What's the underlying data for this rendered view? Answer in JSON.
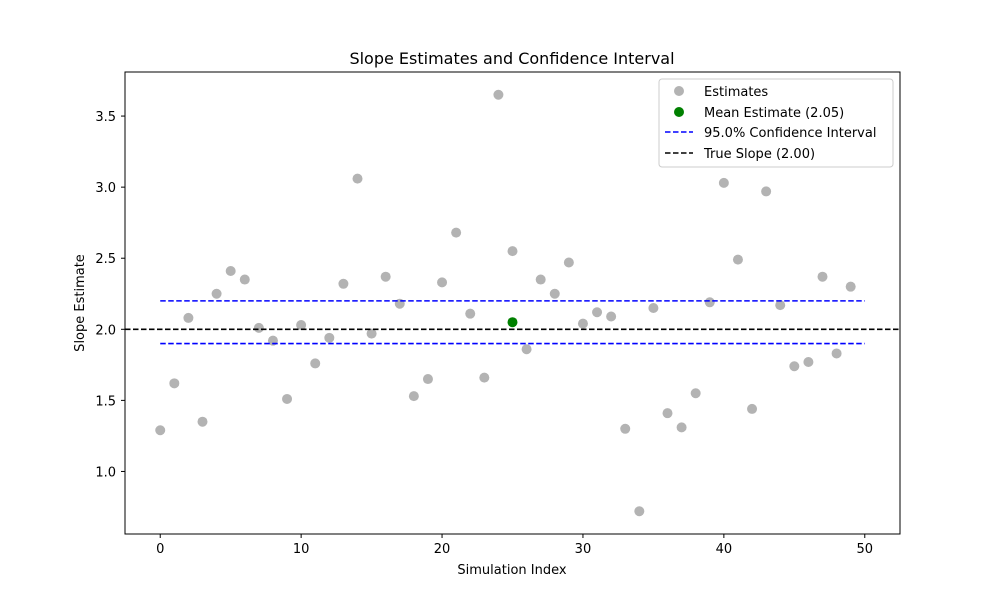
{
  "chart_data": {
    "type": "scatter",
    "title": "Slope Estimates and Confidence Interval",
    "xlabel": "Simulation Index",
    "ylabel": "Slope Estimate",
    "xlim": [
      -2.5,
      52.5
    ],
    "ylim": [
      0.56,
      3.81
    ],
    "xticks": [
      0,
      10,
      20,
      30,
      40,
      50
    ],
    "yticks": [
      1.0,
      1.5,
      2.0,
      2.5,
      3.0,
      3.5
    ],
    "xtick_labels": [
      "0",
      "10",
      "20",
      "30",
      "40",
      "50"
    ],
    "ytick_labels": [
      "1.0",
      "1.5",
      "2.0",
      "2.5",
      "3.0",
      "3.5"
    ],
    "grid": false,
    "legend_position": "top-right",
    "series": [
      {
        "name": "Estimates",
        "kind": "scatter",
        "color": "#b3b3b3",
        "x": [
          0,
          1,
          2,
          3,
          4,
          5,
          6,
          7,
          8,
          9,
          10,
          11,
          12,
          13,
          14,
          15,
          16,
          17,
          18,
          19,
          20,
          21,
          22,
          23,
          24,
          25,
          26,
          27,
          28,
          29,
          30,
          31,
          32,
          33,
          34,
          35,
          36,
          37,
          38,
          39,
          40,
          41,
          42,
          43,
          44,
          45,
          46,
          47,
          48,
          49
        ],
        "y": [
          1.29,
          1.62,
          2.08,
          1.35,
          2.25,
          2.41,
          2.35,
          2.01,
          1.92,
          1.51,
          2.03,
          1.76,
          1.94,
          2.32,
          3.06,
          1.97,
          2.37,
          2.18,
          1.53,
          1.65,
          2.33,
          2.68,
          2.11,
          1.66,
          3.65,
          2.55,
          1.86,
          2.35,
          2.25,
          2.47,
          2.04,
          2.12,
          2.09,
          1.3,
          0.72,
          2.15,
          1.41,
          1.31,
          1.55,
          2.19,
          3.03,
          2.49,
          1.44,
          2.97,
          2.17,
          1.74,
          1.77,
          2.37,
          1.83,
          2.3
        ]
      },
      {
        "name": "Mean Estimate (2.05)",
        "kind": "scatter",
        "color": "#008000",
        "x": [
          25
        ],
        "y": [
          2.05
        ]
      },
      {
        "name": "95.0% Confidence Interval",
        "kind": "hline",
        "color": "#0000ff",
        "lines": [
          {
            "y": 2.2,
            "x": [
              0,
              50
            ]
          },
          {
            "y": 1.9,
            "x": [
              0,
              50
            ]
          }
        ]
      },
      {
        "name": "True Slope (2.00)",
        "kind": "hline",
        "color": "#000000",
        "lines": [
          {
            "y": 2.0,
            "x": "full"
          }
        ]
      }
    ]
  }
}
